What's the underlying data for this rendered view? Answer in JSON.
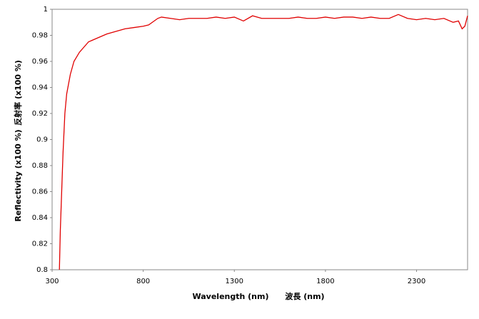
{
  "chart_data": {
    "type": "line",
    "y_label_ja": "反射率 (x100 %)",
    "y_label_en": "Reflectivity (x100 %)",
    "x_label_en": "Wavelength (nm)",
    "x_label_ja": "波長 (nm)",
    "x": [
      340,
      345,
      350,
      360,
      370,
      380,
      400,
      420,
      450,
      500,
      550,
      600,
      650,
      700,
      750,
      800,
      830,
      850,
      880,
      900,
      950,
      1000,
      1050,
      1100,
      1150,
      1200,
      1250,
      1300,
      1350,
      1400,
      1450,
      1500,
      1550,
      1600,
      1650,
      1700,
      1750,
      1800,
      1850,
      1900,
      1950,
      2000,
      2050,
      2100,
      2150,
      2200,
      2250,
      2300,
      2350,
      2400,
      2450,
      2500,
      2530,
      2550,
      2565,
      2580
    ],
    "series": [
      {
        "color": "#e00000",
        "values": [
          0.8,
          0.83,
          0.85,
          0.89,
          0.92,
          0.935,
          0.95,
          0.96,
          0.967,
          0.975,
          0.978,
          0.981,
          0.983,
          0.985,
          0.986,
          0.987,
          0.988,
          0.99,
          0.993,
          0.994,
          0.993,
          0.992,
          0.993,
          0.993,
          0.993,
          0.994,
          0.993,
          0.994,
          0.991,
          0.995,
          0.993,
          0.993,
          0.993,
          0.993,
          0.994,
          0.993,
          0.993,
          0.994,
          0.993,
          0.994,
          0.994,
          0.993,
          0.994,
          0.993,
          0.993,
          0.996,
          0.993,
          0.992,
          0.993,
          0.992,
          0.993,
          0.99,
          0.991,
          0.985,
          0.987,
          0.995
        ]
      }
    ],
    "xlim": [
      300,
      2580
    ],
    "ylim": [
      0.8,
      1
    ],
    "xticks": [
      300,
      800,
      1300,
      1800,
      2300
    ],
    "yticks": [
      0.8,
      0.82,
      0.84,
      0.86,
      0.88,
      0.9,
      0.92,
      0.94,
      0.96,
      0.98,
      1
    ]
  }
}
